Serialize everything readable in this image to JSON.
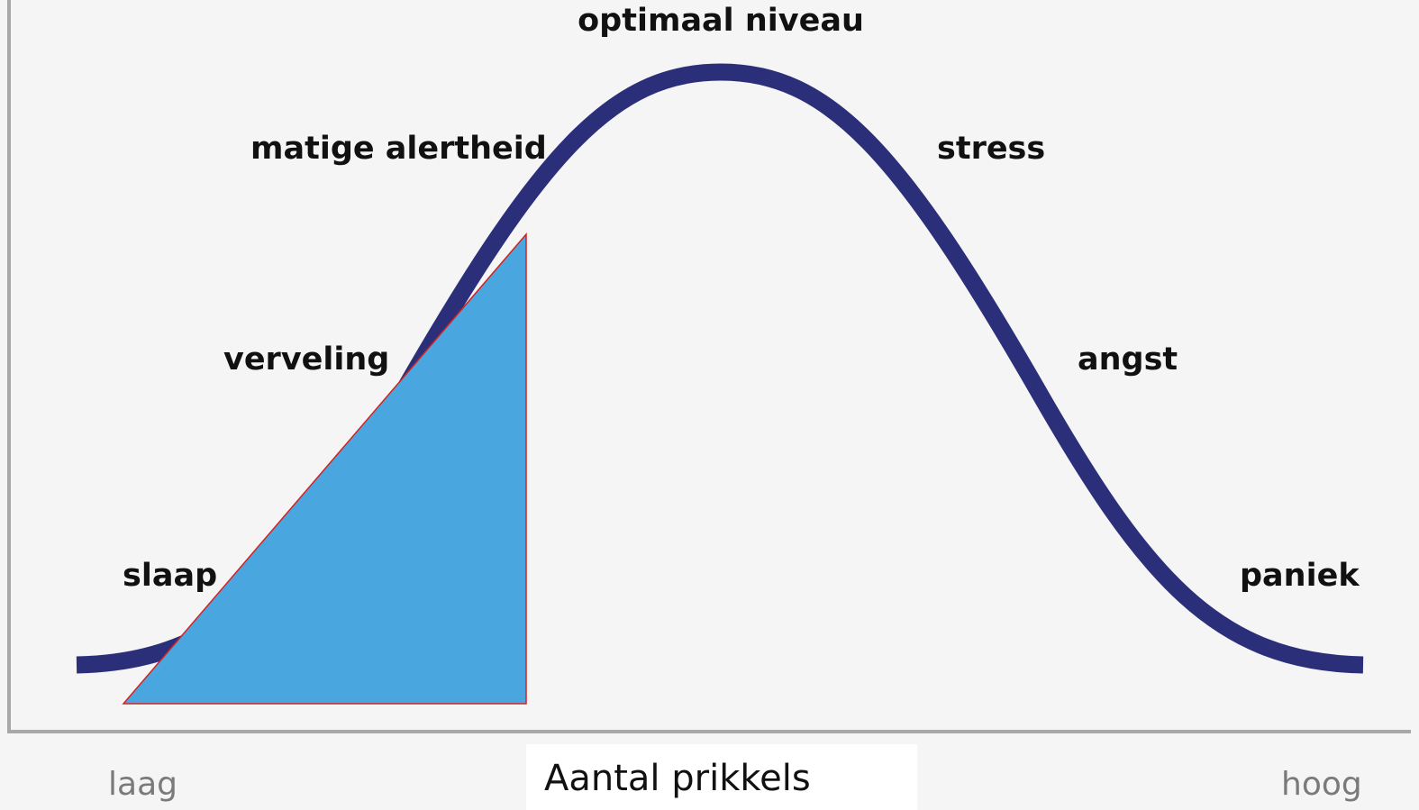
{
  "curve_labels": [
    "optimaal niveau",
    "matige alertheid",
    "stress",
    "verveling",
    "angst",
    "slaap",
    "paniek"
  ],
  "axis": {
    "low": "laag",
    "high": "hoog",
    "title": "Aantal prikkels"
  }
}
